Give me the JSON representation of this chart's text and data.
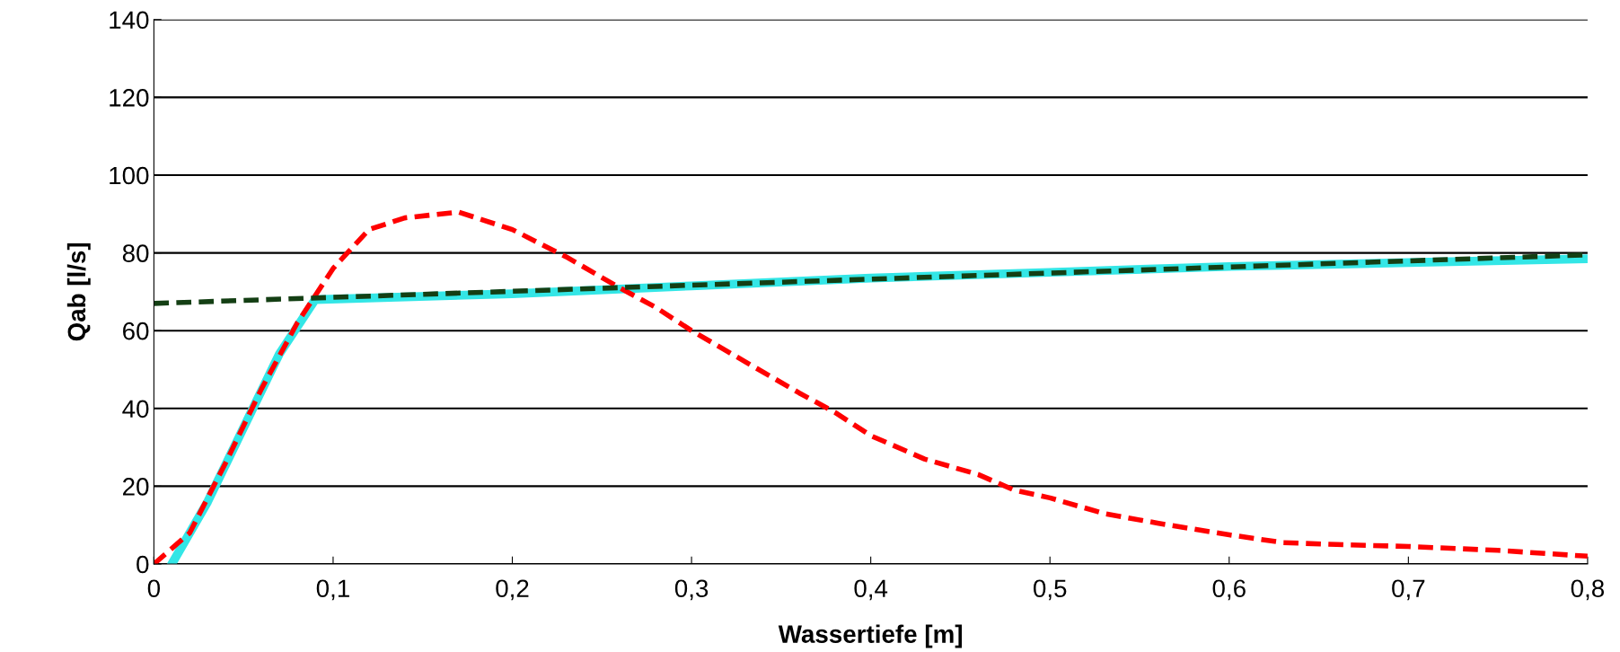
{
  "chart_data": {
    "type": "line",
    "xlabel": "Wassertiefe [m]",
    "ylabel": "Qab [l/s]",
    "xlim": [
      0,
      0.8
    ],
    "ylim": [
      0,
      140
    ],
    "xticks": [
      {
        "value": 0,
        "label": "0"
      },
      {
        "value": 0.1,
        "label": "0,1"
      },
      {
        "value": 0.2,
        "label": "0,2"
      },
      {
        "value": 0.3,
        "label": "0,3"
      },
      {
        "value": 0.4,
        "label": "0,4"
      },
      {
        "value": 0.5,
        "label": "0,5"
      },
      {
        "value": 0.6,
        "label": "0,6"
      },
      {
        "value": 0.7,
        "label": "0,7"
      },
      {
        "value": 0.8,
        "label": "0,8"
      }
    ],
    "yticks": [
      0,
      20,
      40,
      60,
      80,
      100,
      120,
      140
    ],
    "grid": "y",
    "legend": false,
    "marker": "none",
    "series": [
      {
        "color": "#33e6e6",
        "line_style": "solid",
        "x": [
          0.01,
          0.03,
          0.05,
          0.07,
          0.09,
          0.2,
          0.3,
          0.4,
          0.5,
          0.6,
          0.7,
          0.8
        ],
        "values": [
          0,
          16,
          35,
          54,
          68,
          69.5,
          71.5,
          73.5,
          75,
          76.5,
          77.5,
          78.5
        ]
      },
      {
        "color": "#ff0000",
        "line_style": "dashed",
        "x": [
          0,
          0.02,
          0.04,
          0.06,
          0.08,
          0.1,
          0.12,
          0.14,
          0.17,
          0.2,
          0.23,
          0.26,
          0.28,
          0.3,
          0.33,
          0.36,
          0.38,
          0.4,
          0.43,
          0.46,
          0.48,
          0.5,
          0.53,
          0.56,
          0.6,
          0.63,
          0.66,
          0.7,
          0.75,
          0.8
        ],
        "values": [
          0,
          8,
          26,
          45,
          62,
          76,
          86,
          89,
          90.5,
          86,
          79,
          71,
          66,
          60,
          52,
          44,
          39,
          33,
          27,
          23,
          19,
          17,
          13,
          10.5,
          7.5,
          5.5,
          5,
          4.5,
          3.5,
          2
        ]
      },
      {
        "color": "#143f14",
        "line_style": "dashed",
        "x": [
          0,
          0.8
        ],
        "values": [
          67,
          79.5
        ]
      }
    ]
  }
}
